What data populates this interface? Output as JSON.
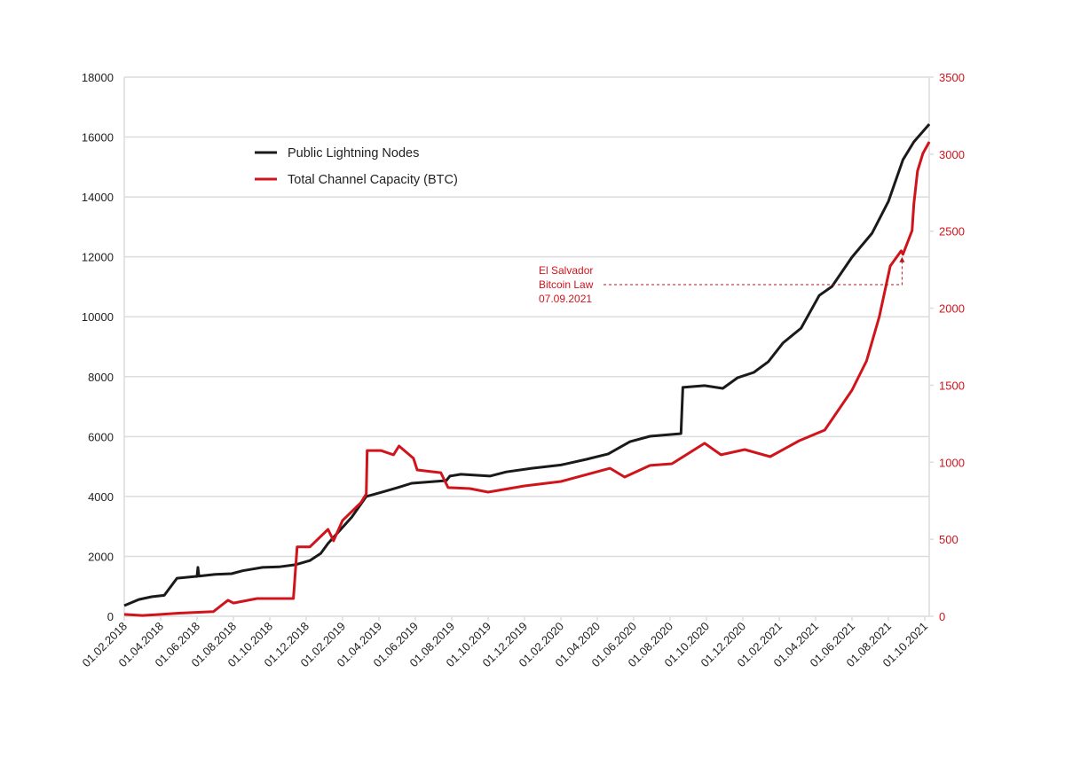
{
  "colors": {
    "nodes": "#1a1a1a",
    "capacity": "#d0141c",
    "grid": "#dcdcdc"
  },
  "chart_data": {
    "type": "line",
    "title": "",
    "x_axis": {
      "unit": "months since 01.02.2018",
      "range": [
        0,
        44.25
      ],
      "tick_labels": [
        "01.02.2018",
        "01.04.2018",
        "01.06.2018",
        "01.08.2018",
        "01.10.2018",
        "01.12.2018",
        "01.02.2019",
        "01.04.2019",
        "01.06.2019",
        "01.08.2019",
        "01.10.2019",
        "01.12.2019",
        "01.02.2020",
        "01.04.2020",
        "01.06.2020",
        "01.08.2020",
        "01.10.2020",
        "01.12.2020",
        "01.02.2021",
        "01.04.2021",
        "01.06.2021",
        "01.08.2021",
        "01.10.2021"
      ]
    },
    "y_left": {
      "range": [
        0,
        18000
      ],
      "ticks": [
        "0",
        "2000",
        "4000",
        "6000",
        "8000",
        "10000",
        "12000",
        "14000",
        "16000",
        "18000"
      ]
    },
    "y_right": {
      "range": [
        0,
        3500
      ],
      "ticks": [
        "0",
        "500",
        "1000",
        "1500",
        "2000",
        "2500",
        "3000",
        "3500"
      ]
    },
    "grid": true,
    "legend_position": "top-left",
    "series": [
      {
        "name": "Public Lightning Nodes",
        "axis": "left",
        "points": [
          [
            0,
            355
          ],
          [
            0.8,
            560
          ],
          [
            1.5,
            650
          ],
          [
            2.2,
            700
          ],
          [
            2.9,
            1270
          ],
          [
            3.9,
            1330
          ],
          [
            4.0,
            1330
          ],
          [
            4.05,
            1630
          ],
          [
            4.1,
            1340
          ],
          [
            5.0,
            1400
          ],
          [
            5.9,
            1420
          ],
          [
            6.5,
            1520
          ],
          [
            7.6,
            1630
          ],
          [
            8.5,
            1650
          ],
          [
            9.4,
            1720
          ],
          [
            10.2,
            1860
          ],
          [
            10.8,
            2100
          ],
          [
            11.2,
            2430
          ],
          [
            12.5,
            3310
          ],
          [
            13.3,
            4000
          ],
          [
            14.2,
            4150
          ],
          [
            15,
            4290
          ],
          [
            15.8,
            4440
          ],
          [
            17.7,
            4530
          ],
          [
            17.9,
            4680
          ],
          [
            18.5,
            4740
          ],
          [
            20.1,
            4680
          ],
          [
            21,
            4820
          ],
          [
            22.4,
            4940
          ],
          [
            24,
            5050
          ],
          [
            25.4,
            5240
          ],
          [
            26.6,
            5420
          ],
          [
            27.8,
            5830
          ],
          [
            28.9,
            6010
          ],
          [
            30.6,
            6100
          ],
          [
            30.7,
            7640
          ],
          [
            31.9,
            7700
          ],
          [
            32.9,
            7610
          ],
          [
            33.7,
            7960
          ],
          [
            34.6,
            8140
          ],
          [
            35.4,
            8500
          ],
          [
            36.2,
            9120
          ],
          [
            37.2,
            9620
          ],
          [
            38.2,
            10710
          ],
          [
            38.9,
            11010
          ],
          [
            40,
            11990
          ],
          [
            41.1,
            12790
          ],
          [
            42,
            13850
          ],
          [
            42.8,
            15240
          ],
          [
            43.4,
            15840
          ],
          [
            44.25,
            16430
          ]
        ]
      },
      {
        "name": "Total Channel Capacity (BTC)",
        "axis": "right",
        "points": [
          [
            0,
            12
          ],
          [
            1,
            5
          ],
          [
            2,
            12
          ],
          [
            3,
            20
          ],
          [
            4.9,
            30
          ],
          [
            5.7,
            104
          ],
          [
            6,
            86
          ],
          [
            7.3,
            115
          ],
          [
            9.3,
            115
          ],
          [
            9.5,
            450
          ],
          [
            10.2,
            450
          ],
          [
            11.2,
            564
          ],
          [
            11.5,
            490
          ],
          [
            12,
            622
          ],
          [
            13,
            737
          ],
          [
            13.3,
            794
          ],
          [
            13.35,
            1076
          ],
          [
            14.1,
            1076
          ],
          [
            14.8,
            1048
          ],
          [
            15.1,
            1105
          ],
          [
            15.9,
            1025
          ],
          [
            16.1,
            950
          ],
          [
            17.4,
            932
          ],
          [
            17.8,
            835
          ],
          [
            19,
            829
          ],
          [
            20,
            806
          ],
          [
            22,
            846
          ],
          [
            24,
            875
          ],
          [
            26.7,
            961
          ],
          [
            27.5,
            904
          ],
          [
            28.9,
            979
          ],
          [
            30.1,
            990
          ],
          [
            31.9,
            1123
          ],
          [
            32.8,
            1048
          ],
          [
            34.1,
            1082
          ],
          [
            35.5,
            1036
          ],
          [
            37.1,
            1140
          ],
          [
            38.5,
            1209
          ],
          [
            40,
            1468
          ],
          [
            40.8,
            1658
          ],
          [
            41.5,
            1946
          ],
          [
            42.1,
            2274
          ],
          [
            42.7,
            2372
          ],
          [
            42.8,
            2350
          ],
          [
            43.3,
            2504
          ],
          [
            43.4,
            2677
          ],
          [
            43.6,
            2890
          ],
          [
            43.9,
            3005
          ],
          [
            44.25,
            3080
          ]
        ]
      }
    ],
    "annotations": [
      {
        "lines": [
          "El Salvador",
          "Bitcoin Law",
          "07.09.2021"
        ],
        "x": 42.75,
        "y_right": 2350
      }
    ]
  }
}
